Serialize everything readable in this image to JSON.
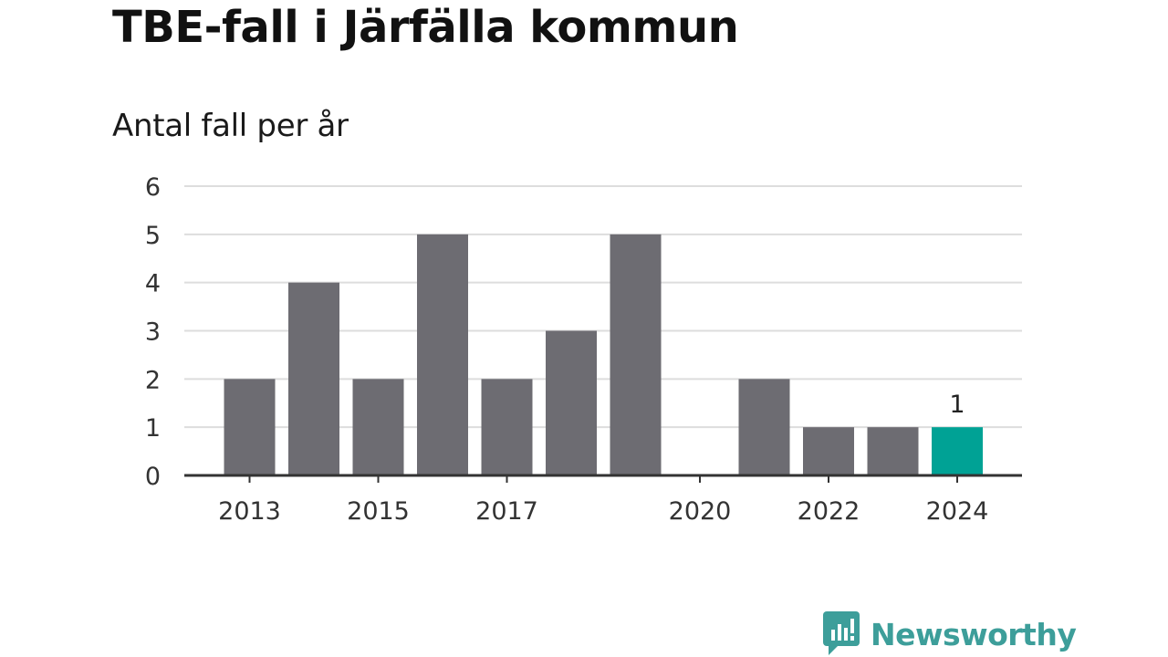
{
  "title": "TBE-fall i Järfälla kommun",
  "subtitle": "Antal fall per år",
  "brand": {
    "name": "Newsworthy",
    "icon": "newsworthy-logo-icon"
  },
  "colors": {
    "bar": "#6d6c72",
    "highlight": "#00a295",
    "grid": "#dddddd",
    "axis": "#333333",
    "brand": "#3d9e9a"
  },
  "chart_data": {
    "type": "bar",
    "title": "TBE-fall i Järfälla kommun",
    "subtitle": "Antal fall per år",
    "xlabel": "",
    "ylabel": "",
    "categories": [
      "2013",
      "2014",
      "2015",
      "2016",
      "2017",
      "2018",
      "2019",
      "2020",
      "2021",
      "2022",
      "2023",
      "2024"
    ],
    "values": [
      2,
      4,
      2,
      5,
      2,
      3,
      5,
      0,
      2,
      1,
      1,
      1
    ],
    "x_tick_labels": [
      "2013",
      "2015",
      "2017",
      "2020",
      "2022",
      "2024"
    ],
    "y_ticks": [
      "0",
      "1",
      "2",
      "3",
      "4",
      "5",
      "6"
    ],
    "ylim": [
      0,
      6
    ],
    "highlight_category": "2024",
    "data_labels": [
      {
        "category": "2024",
        "text": "1"
      }
    ],
    "grid": true,
    "legend": "none"
  }
}
